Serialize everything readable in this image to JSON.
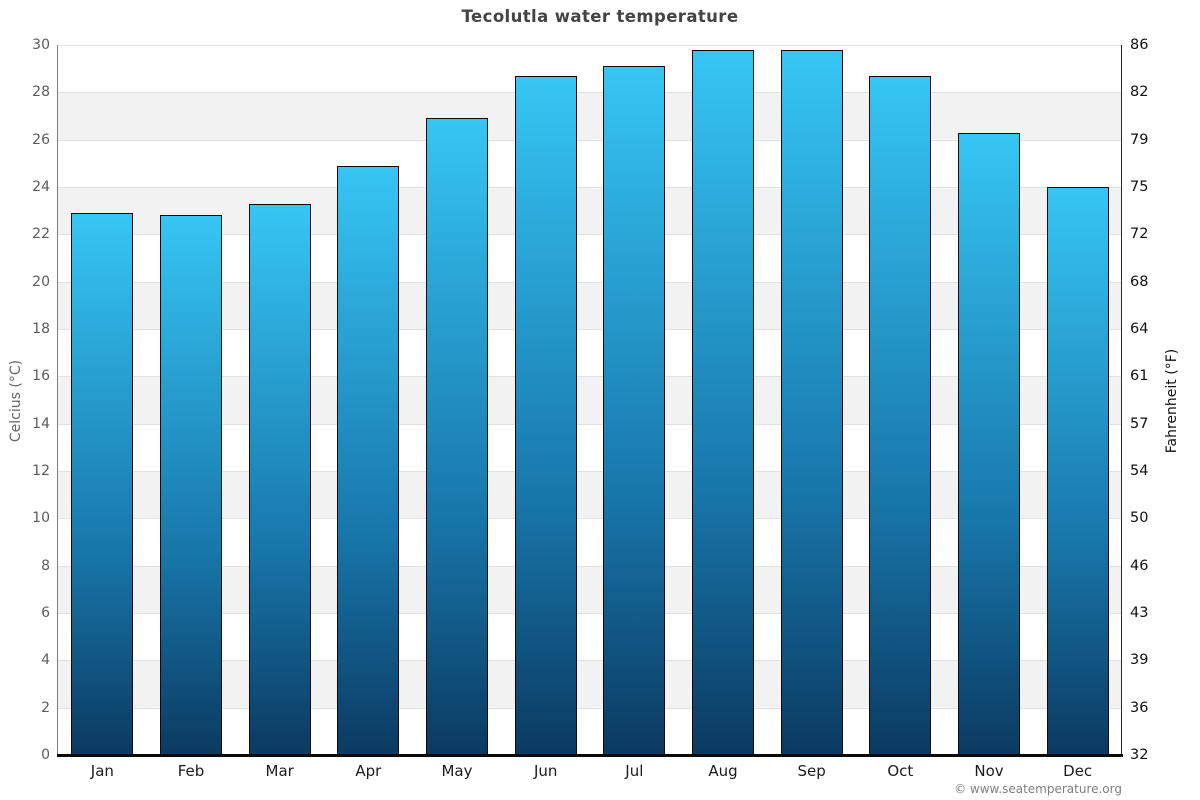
{
  "title": "Tecolutla water temperature",
  "copyright": "© www.seatemperature.org",
  "chart_data": {
    "type": "bar",
    "title": "Tecolutla water temperature",
    "categories": [
      "Jan",
      "Feb",
      "Mar",
      "Apr",
      "May",
      "Jun",
      "Jul",
      "Aug",
      "Sep",
      "Oct",
      "Nov",
      "Dec"
    ],
    "values": [
      22.9,
      22.8,
      23.3,
      24.9,
      26.9,
      28.7,
      29.1,
      29.8,
      29.8,
      28.7,
      26.3,
      24.0
    ],
    "series_name": "Water temperature (°C)",
    "xlabel": "",
    "ylabel_left": "Celcius (°C)",
    "ylabel_right": "Fahrenheit (°F)",
    "ylim": [
      0,
      30
    ],
    "ytick_step": 2,
    "yticks_left": [
      "30",
      "28",
      "26",
      "24",
      "22",
      "20",
      "18",
      "16",
      "14",
      "12",
      "10",
      "8",
      "6",
      "4",
      "2",
      "0"
    ],
    "yticks_right": [
      "86",
      "82",
      "79",
      "75",
      "72",
      "68",
      "64",
      "61",
      "57",
      "54",
      "50",
      "46",
      "43",
      "39",
      "36",
      "32"
    ],
    "grid": "horizontal-bands",
    "legend": "none",
    "colors": {
      "bar_top": "#36c6f4",
      "bar_bottom": "#0b3a61",
      "bar_border": "#0a0a0a",
      "band_gray": "#f2f2f2",
      "band_white": "#ffffff",
      "gridline": "#e2e2e2",
      "title_text": "#444444",
      "left_tick_text": "#5c5c5c",
      "right_tick_text": "#111111"
    }
  }
}
